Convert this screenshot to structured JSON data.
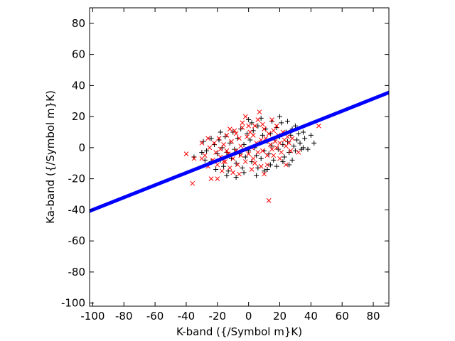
{
  "chart_data": {
    "type": "scatter",
    "xlabel": "K-band ({/Symbol m}K)",
    "ylabel": "Ka-band ({/Symbol m}K)",
    "xlim": [
      -102,
      90
    ],
    "ylim": [
      -102,
      90
    ],
    "xticks": [
      -100,
      -80,
      -60,
      -40,
      -20,
      0,
      20,
      40,
      60,
      80
    ],
    "yticks": [
      -100,
      -80,
      -60,
      -40,
      -20,
      0,
      20,
      40,
      60,
      80
    ],
    "grid": false,
    "legend": "none",
    "colors": {
      "series_black": "#000000",
      "series_red": "#ff0000",
      "fit_line": "#0000ff"
    },
    "fit_line": {
      "x": [
        -102,
        90
      ],
      "y": [
        -40.8,
        35.5
      ]
    },
    "series": [
      {
        "marker": "plus",
        "points": [
          [
            -35,
            -6
          ],
          [
            -30,
            -3
          ],
          [
            -29,
            4
          ],
          [
            -27,
            -2
          ],
          [
            -24,
            -9
          ],
          [
            -22,
            2
          ],
          [
            -21,
            -14
          ],
          [
            -20,
            -4
          ],
          [
            -19,
            5
          ],
          [
            -18,
            -8
          ],
          [
            -17,
            0
          ],
          [
            -16,
            -12
          ],
          [
            -15,
            7
          ],
          [
            -14,
            -3
          ],
          [
            -13,
            -15
          ],
          [
            -12,
            3
          ],
          [
            -11,
            -7
          ],
          [
            -10,
            10
          ],
          [
            -9,
            -1
          ],
          [
            -8,
            -10
          ],
          [
            -7,
            6
          ],
          [
            -6,
            -4
          ],
          [
            -5,
            12
          ],
          [
            -4,
            -13
          ],
          [
            -3,
            2
          ],
          [
            -2,
            -6
          ],
          [
            -1,
            9
          ],
          [
            0,
            -2
          ],
          [
            1,
            5
          ],
          [
            2,
            -9
          ],
          [
            3,
            11
          ],
          [
            4,
            0
          ],
          [
            5,
            -5
          ],
          [
            6,
            14
          ],
          [
            7,
            3
          ],
          [
            8,
            -7
          ],
          [
            9,
            8
          ],
          [
            10,
            -2
          ],
          [
            11,
            12
          ],
          [
            12,
            4
          ],
          [
            13,
            -4
          ],
          [
            14,
            9
          ],
          [
            15,
            1
          ],
          [
            16,
            -8
          ],
          [
            17,
            6
          ],
          [
            18,
            13
          ],
          [
            19,
            -1
          ],
          [
            20,
            7
          ],
          [
            21,
            16
          ],
          [
            22,
            2
          ],
          [
            23,
            -6
          ],
          [
            24,
            10
          ],
          [
            25,
            4
          ],
          [
            26,
            -3
          ],
          [
            27,
            8
          ],
          [
            28,
            12
          ],
          [
            29,
            1
          ],
          [
            30,
            -2
          ],
          [
            31,
            5
          ],
          [
            32,
            9
          ],
          [
            33,
            3
          ],
          [
            34,
            -1
          ],
          [
            35,
            10
          ],
          [
            36,
            6
          ],
          [
            38,
            -1
          ],
          [
            40,
            8
          ],
          [
            42,
            3
          ],
          [
            10,
            -15
          ],
          [
            14,
            -11
          ],
          [
            26,
            -11
          ],
          [
            -24,
            6
          ],
          [
            5,
            -18
          ],
          [
            -8,
            -19
          ],
          [
            20,
            20
          ],
          [
            25,
            17
          ],
          [
            0,
            18
          ],
          [
            -3,
            -16
          ],
          [
            18,
            -12
          ],
          [
            8,
            19
          ],
          [
            12,
            -14
          ],
          [
            -18,
            10
          ],
          [
            30,
            14
          ],
          [
            15,
            17
          ],
          [
            -14,
            -18
          ],
          [
            22,
            -9
          ],
          [
            35,
            0
          ],
          [
            2,
            16
          ],
          [
            -28,
            -8
          ],
          [
            28,
            -8
          ],
          [
            6,
            -13
          ]
        ]
      },
      {
        "marker": "cross",
        "points": [
          [
            -40,
            -4
          ],
          [
            -36,
            -23
          ],
          [
            -35,
            -7
          ],
          [
            -30,
            3
          ],
          [
            -28,
            -5
          ],
          [
            -26,
            -12
          ],
          [
            -25,
            0
          ],
          [
            -24,
            -20
          ],
          [
            -23,
            -8
          ],
          [
            -22,
            3
          ],
          [
            -21,
            -3
          ],
          [
            -20,
            -11
          ],
          [
            -19,
            6
          ],
          [
            -18,
            -6
          ],
          [
            -17,
            -15
          ],
          [
            -16,
            2
          ],
          [
            -15,
            -9
          ],
          [
            -14,
            8
          ],
          [
            -13,
            -4
          ],
          [
            -12,
            -13
          ],
          [
            -11,
            4
          ],
          [
            -10,
            -7
          ],
          [
            -9,
            11
          ],
          [
            -8,
            -2
          ],
          [
            -7,
            -11
          ],
          [
            -6,
            6
          ],
          [
            -5,
            -5
          ],
          [
            -4,
            13
          ],
          [
            -3,
            -1
          ],
          [
            -2,
            -9
          ],
          [
            -1,
            7
          ],
          [
            0,
            -4
          ],
          [
            1,
            10
          ],
          [
            2,
            0
          ],
          [
            3,
            -7
          ],
          [
            4,
            14
          ],
          [
            5,
            3
          ],
          [
            6,
            -3
          ],
          [
            7,
            23
          ],
          [
            8,
            5
          ],
          [
            9,
            -2
          ],
          [
            10,
            12
          ],
          [
            11,
            6
          ],
          [
            12,
            -5
          ],
          [
            13,
            9
          ],
          [
            14,
            2
          ],
          [
            15,
            -1
          ],
          [
            16,
            11
          ],
          [
            17,
            4
          ],
          [
            18,
            0
          ],
          [
            19,
            8
          ],
          [
            20,
            3
          ],
          [
            21,
            -3
          ],
          [
            22,
            10
          ],
          [
            23,
            5
          ],
          [
            24,
            1
          ],
          [
            25,
            7
          ],
          [
            26,
            3
          ],
          [
            27,
            -2
          ],
          [
            28,
            6
          ],
          [
            32,
            -3
          ],
          [
            45,
            14
          ],
          [
            13,
            -34
          ],
          [
            -20,
            -20
          ],
          [
            10,
            -17
          ],
          [
            24,
            -11
          ],
          [
            -4,
            16
          ],
          [
            -12,
            12
          ],
          [
            2,
            -14
          ],
          [
            -16,
            -9
          ],
          [
            15,
            18
          ],
          [
            -6,
            -17
          ],
          [
            6,
            18
          ],
          [
            20,
            -7
          ],
          [
            -26,
            6
          ],
          [
            0,
            14
          ],
          [
            -10,
            -16
          ],
          [
            18,
            14
          ],
          [
            -30,
            -7
          ],
          [
            8,
            -12
          ],
          [
            -2,
            20
          ],
          [
            4,
            -10
          ],
          [
            -8,
            9
          ],
          [
            12,
            -11
          ],
          [
            16,
            -5
          ],
          [
            -14,
            -2
          ],
          [
            3,
            8
          ],
          [
            -5,
            1
          ],
          [
            9,
            15
          ],
          [
            -18,
            -1
          ]
        ]
      }
    ]
  }
}
